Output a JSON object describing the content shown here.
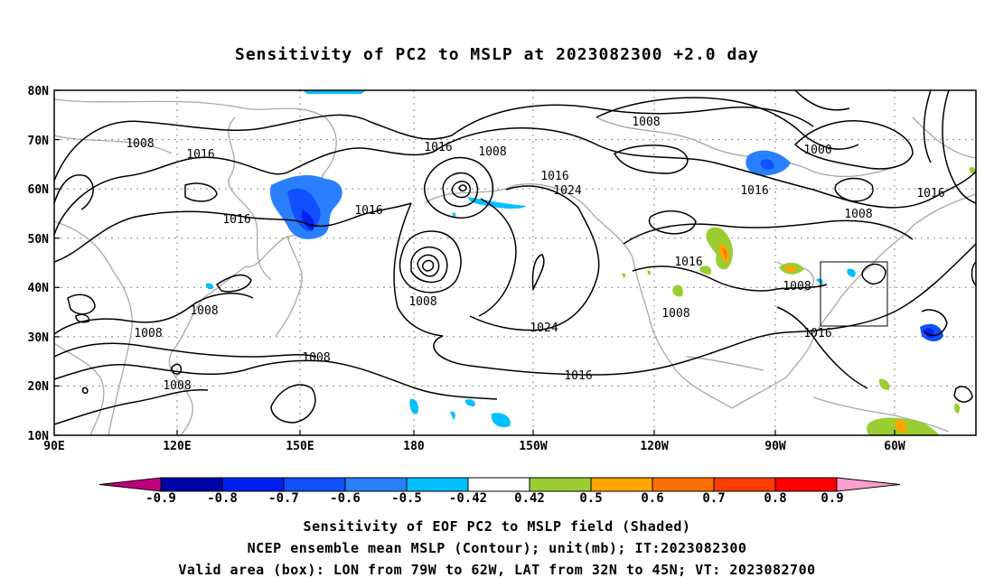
{
  "title": "Sensitivity of PC2 to MSLP at 2023082300 +2.0 day",
  "lat_labels": [
    "80N",
    "70N",
    "60N",
    "50N",
    "40N",
    "30N",
    "20N",
    "10N"
  ],
  "lon_labels": [
    "90E",
    "120E",
    "150E",
    "180",
    "150W",
    "120W",
    "90W",
    "60W"
  ],
  "contour_labels": [
    "1008",
    "1016",
    "1008",
    "1016",
    "1016",
    "1016",
    "1008",
    "1024",
    "1016",
    "1008",
    "1000",
    "1016",
    "1016",
    "1008",
    "1016",
    "1008",
    "1008",
    "1008",
    "1008",
    "1024",
    "1008",
    "1008",
    "1016",
    "1008",
    "1016"
  ],
  "colorbar": {
    "labels": [
      "-0.9",
      "-0.8",
      "-0.7",
      "-0.6",
      "-0.5",
      "-0.42",
      "0.42",
      "0.5",
      "0.6",
      "0.7",
      "0.8",
      "0.9"
    ],
    "colors": [
      "#c0007f",
      "#0000a8",
      "#0020f0",
      "#1050ff",
      "#2a7fff",
      "#00c0ff",
      "#ffffff",
      "#9acd32",
      "#ffa500",
      "#ff7000",
      "#ff3c00",
      "#ff0000",
      "#ff9fcf"
    ]
  },
  "captions": {
    "line1": "Sensitivity of EOF PC2 to MSLP field (Shaded)",
    "line2": "NCEP ensemble mean MSLP (Contour); unit(mb); IT:2023082300",
    "line3": "Valid area (box): LON from 79W to 62W, LAT from 32N to 45N; VT: 2023082700"
  },
  "valid_area": {
    "lon_from": "79W",
    "lon_to": "62W",
    "lat_from": "32N",
    "lat_to": "45N"
  },
  "colors": {
    "coast": "#a8a8a8",
    "contour": "#000000",
    "grid": "#888888"
  }
}
